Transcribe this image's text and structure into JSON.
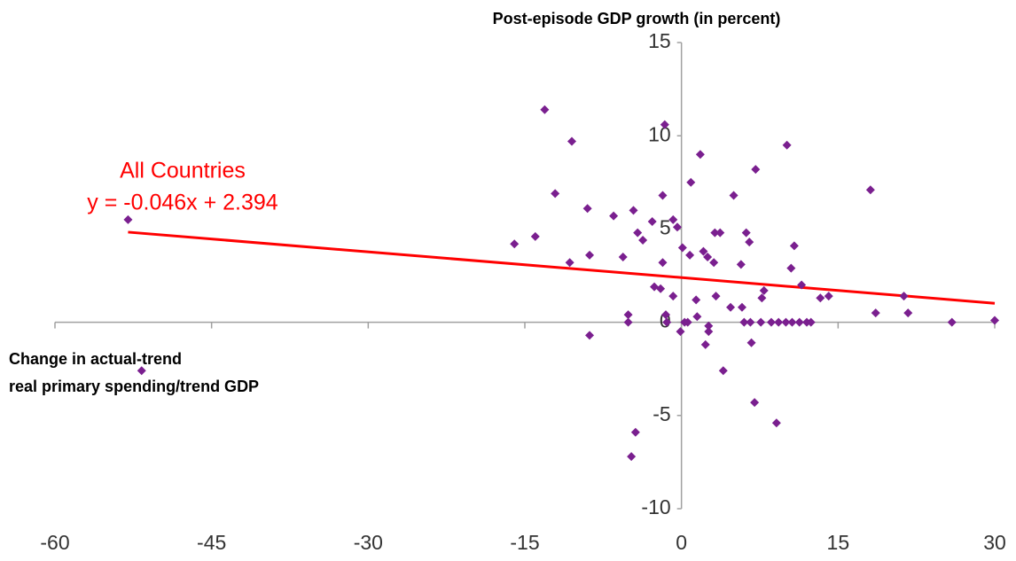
{
  "chart_data": {
    "type": "scatter",
    "y_label": "Post-episode GDP growth (in percent)",
    "x_label": [
      "Change in actual-trend",
      "real primary spending/trend GDP"
    ],
    "color": "#7a1f8f",
    "x": [
      -53.0,
      -51.7,
      -16.0,
      -14.0,
      -13.1,
      -12.1,
      -10.7,
      -10.5,
      -9.0,
      -8.8,
      -8.8,
      -6.5,
      -5.6,
      -5.1,
      -5.1,
      -4.8,
      -4.4,
      -4.6,
      -4.2,
      -3.7,
      -2.8,
      -2.6,
      -2.0,
      -1.8,
      -1.8,
      -1.6,
      -1.5,
      -1.4,
      -0.8,
      -0.8,
      -0.4,
      -0.1,
      0.1,
      0.3,
      0.6,
      0.8,
      0.9,
      1.4,
      1.5,
      1.8,
      2.1,
      2.3,
      2.5,
      2.6,
      2.6,
      3.1,
      3.2,
      3.3,
      3.7,
      4.0,
      4.7,
      5.0,
      5.7,
      5.8,
      6.0,
      6.2,
      6.5,
      6.6,
      6.7,
      7.0,
      7.1,
      7.6,
      7.7,
      7.9,
      8.6,
      9.1,
      9.3,
      10.0,
      10.1,
      10.5,
      10.6,
      10.8,
      11.3,
      11.5,
      12.0,
      12.4,
      13.3,
      14.1,
      18.1,
      18.6,
      21.3,
      21.7,
      25.9,
      30.0
    ],
    "values": [
      5.5,
      -2.6,
      4.2,
      4.6,
      11.4,
      6.9,
      3.2,
      9.7,
      6.1,
      3.6,
      -0.7,
      5.7,
      3.5,
      0.4,
      0.0,
      -7.2,
      -5.9,
      6.0,
      4.8,
      4.4,
      5.4,
      1.9,
      1.8,
      3.2,
      6.8,
      10.6,
      0.4,
      0.0,
      1.4,
      5.5,
      5.1,
      -0.5,
      4.0,
      0.0,
      0.0,
      3.6,
      7.5,
      1.2,
      0.3,
      9.0,
      3.8,
      -1.2,
      3.5,
      -0.2,
      -0.5,
      3.2,
      4.8,
      1.4,
      4.8,
      -2.6,
      0.8,
      6.8,
      3.1,
      0.8,
      0.0,
      4.8,
      4.3,
      0.0,
      -1.1,
      -4.3,
      8.2,
      0.0,
      1.3,
      1.7,
      0.0,
      -5.4,
      0.0,
      0.0,
      9.5,
      2.9,
      0.0,
      4.1,
      0.0,
      2.0,
      0.0,
      0.0,
      1.3,
      1.4,
      7.1,
      0.5,
      1.4,
      0.5,
      0.0,
      0.1
    ],
    "trendline": {
      "name": "All Countries",
      "equation": "y = -0.046x + 2.394",
      "slope": -0.046,
      "intercept": 2.394,
      "color": "#ff0000",
      "x_range": [
        -53,
        30
      ]
    },
    "xlim": [
      -60,
      30
    ],
    "xticks": [
      -60,
      -45,
      -30,
      -15,
      0,
      15,
      30
    ],
    "ylim": [
      -10,
      15
    ],
    "yticks": [
      -10,
      -5,
      0,
      5,
      10,
      15
    ]
  }
}
